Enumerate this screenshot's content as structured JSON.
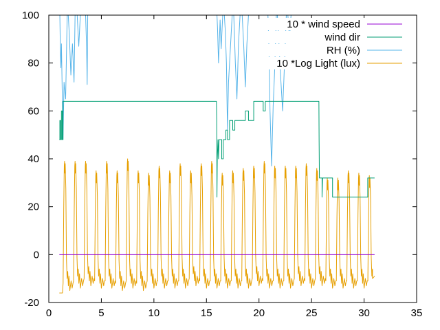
{
  "chart_data": {
    "type": "line",
    "title": "",
    "xlabel": "",
    "ylabel": "",
    "xlim": [
      0,
      35
    ],
    "ylim": [
      -20,
      100
    ],
    "x_ticks": [
      0,
      5,
      10,
      15,
      20,
      25,
      30,
      35
    ],
    "y_ticks": [
      -20,
      0,
      20,
      40,
      60,
      80,
      100
    ],
    "grid": false,
    "legend_position": "top-right",
    "series": [
      {
        "name": "10 * wind speed",
        "color": "#9400d3",
        "points": [
          [
            1.0,
            0
          ],
          [
            31.0,
            0
          ]
        ]
      },
      {
        "name": "wind dir",
        "color": "#009e73",
        "points": [
          [
            1.0,
            48
          ],
          [
            1.05,
            48
          ],
          [
            1.05,
            56
          ],
          [
            1.12,
            56
          ],
          [
            1.12,
            48
          ],
          [
            1.2,
            48
          ],
          [
            1.2,
            60
          ],
          [
            1.28,
            60
          ],
          [
            1.28,
            48
          ],
          [
            1.35,
            48
          ],
          [
            1.35,
            64
          ],
          [
            15.95,
            64
          ],
          [
            15.98,
            56
          ],
          [
            16.0,
            24
          ],
          [
            16.03,
            40
          ],
          [
            16.1,
            48
          ],
          [
            16.15,
            40
          ],
          [
            16.2,
            48
          ],
          [
            16.45,
            48
          ],
          [
            16.45,
            40
          ],
          [
            16.6,
            40
          ],
          [
            16.6,
            48
          ],
          [
            16.85,
            48
          ],
          [
            16.85,
            52
          ],
          [
            17.0,
            52
          ],
          [
            17.0,
            48
          ],
          [
            17.2,
            48
          ],
          [
            17.2,
            56
          ],
          [
            17.5,
            56
          ],
          [
            17.5,
            52
          ],
          [
            17.7,
            52
          ],
          [
            17.7,
            56
          ],
          [
            18.7,
            56
          ],
          [
            18.7,
            60
          ],
          [
            19.0,
            60
          ],
          [
            19.0,
            56
          ],
          [
            19.5,
            56
          ],
          [
            19.5,
            64
          ],
          [
            20.4,
            64
          ],
          [
            20.4,
            60
          ],
          [
            20.6,
            60
          ],
          [
            20.6,
            64
          ],
          [
            25.7,
            64
          ],
          [
            25.72,
            48
          ],
          [
            25.75,
            32
          ],
          [
            26.0,
            32
          ],
          [
            26.0,
            24
          ],
          [
            26.05,
            32
          ],
          [
            27.0,
            32
          ],
          [
            27.0,
            24
          ],
          [
            30.35,
            24
          ],
          [
            30.35,
            32
          ],
          [
            31.0,
            32
          ]
        ]
      },
      {
        "name": "RH (%)",
        "color": "#56b4e9",
        "points": [
          [
            1.05,
            100
          ],
          [
            1.1,
            85
          ],
          [
            1.15,
            78
          ],
          [
            1.2,
            88
          ],
          [
            1.3,
            62
          ],
          [
            1.35,
            48
          ],
          [
            1.45,
            72
          ],
          [
            1.6,
            65
          ],
          [
            1.75,
            100
          ],
          [
            1.85,
            100
          ],
          [
            1.95,
            92
          ],
          [
            2.1,
            75
          ],
          [
            2.25,
            88
          ],
          [
            2.4,
            72
          ],
          [
            2.5,
            100
          ],
          [
            2.7,
            100
          ],
          [
            2.85,
            87
          ],
          [
            3.0,
            100
          ],
          [
            3.5,
            100
          ],
          [
            3.6,
            86
          ],
          [
            3.65,
            71
          ],
          [
            3.7,
            100
          ],
          [
            16.0,
            100
          ],
          [
            16.05,
            95
          ],
          [
            16.15,
            80
          ],
          [
            16.3,
            98
          ],
          [
            16.4,
            86
          ],
          [
            16.55,
            100
          ],
          [
            16.7,
            100
          ],
          [
            16.8,
            93
          ],
          [
            16.9,
            80
          ],
          [
            17.0,
            52
          ],
          [
            17.1,
            72
          ],
          [
            17.3,
            88
          ],
          [
            17.45,
            100
          ],
          [
            17.6,
            100
          ],
          [
            17.75,
            80
          ],
          [
            17.9,
            65
          ],
          [
            18.05,
            88
          ],
          [
            18.2,
            100
          ],
          [
            18.4,
            100
          ],
          [
            18.55,
            87
          ],
          [
            18.7,
            70
          ],
          [
            18.85,
            88
          ],
          [
            19.0,
            100
          ],
          [
            20.85,
            100
          ],
          [
            20.95,
            86
          ],
          [
            21.05,
            60
          ],
          [
            21.2,
            37
          ],
          [
            21.35,
            62
          ],
          [
            21.5,
            78
          ],
          [
            21.65,
            100
          ],
          [
            21.75,
            100
          ],
          [
            21.9,
            88
          ],
          [
            22.05,
            75
          ],
          [
            22.25,
            60
          ],
          [
            22.45,
            82
          ],
          [
            22.6,
            100
          ],
          [
            22.75,
            100
          ],
          [
            22.9,
            90
          ],
          [
            23.05,
            100
          ]
        ]
      },
      {
        "name": "10 *Log Light (lux)",
        "color": "#e69f00",
        "days": [
          1,
          30
        ],
        "day_peaks": [
          39,
          39,
          39,
          35,
          39,
          35,
          40,
          35,
          34,
          37,
          35,
          38,
          35,
          38,
          39,
          34,
          35,
          36,
          37,
          39,
          37,
          37,
          37,
          38,
          36,
          32,
          32,
          35,
          34,
          33
        ],
        "night_lows": [
          -16,
          -15,
          -14,
          -15,
          -15,
          -16,
          -15,
          -16,
          -15,
          -15,
          -15,
          -15,
          -14,
          -15,
          -15,
          -15,
          -15,
          -15,
          -14,
          -15,
          -15,
          -15,
          -14,
          -15,
          -14,
          -15,
          -15,
          -15,
          -15,
          -15
        ],
        "start": [
          [
            1.0,
            -16
          ],
          [
            1.3,
            -16
          ]
        ],
        "end": [
          [
            30.8,
            -10
          ],
          [
            31.0,
            -9
          ]
        ]
      }
    ]
  }
}
